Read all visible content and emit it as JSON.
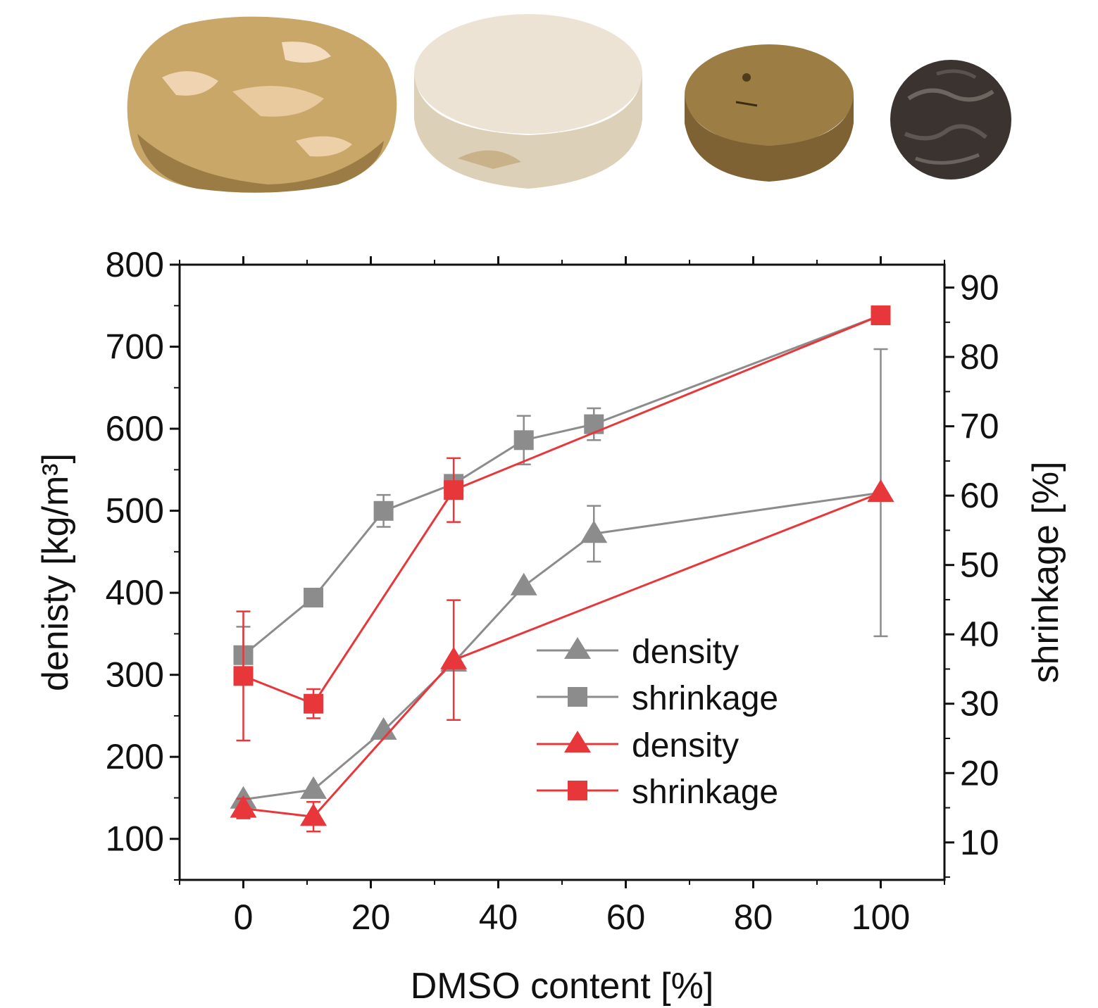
{
  "chart_data": {
    "type": "line",
    "title": "",
    "xlabel": "DMSO content [%]",
    "ylabel_left": "denisty [kg/m³]",
    "ylabel_right": "shrinkage [%]",
    "xlim": [
      -10,
      110
    ],
    "ylim_left": [
      50,
      800
    ],
    "ylim_right": [
      4.6,
      93.3
    ],
    "x_ticks": [
      0,
      20,
      40,
      60,
      80,
      100
    ],
    "y_left_ticks": [
      100,
      200,
      300,
      400,
      500,
      600,
      700,
      800
    ],
    "y_right_ticks": [
      10,
      20,
      30,
      40,
      50,
      60,
      70,
      80,
      90
    ],
    "grid": false,
    "legend_position": "center-right",
    "series": [
      {
        "name": "density",
        "axis": "left",
        "marker": "triangle",
        "color": "#8c8c8c",
        "x": [
          0,
          11,
          22,
          33,
          44,
          55,
          100
        ],
        "y": [
          148,
          160,
          232,
          315,
          408,
          472,
          522
        ],
        "err": [
          0,
          0,
          0,
          0,
          0,
          34,
          175
        ]
      },
      {
        "name": "shrinkage",
        "axis": "right",
        "marker": "square",
        "color": "#8c8c8c",
        "x": [
          0,
          11,
          22,
          33,
          44,
          55,
          100
        ],
        "y": [
          37,
          45.3,
          57.8,
          61.7,
          68,
          70.3,
          86
        ],
        "err": [
          4.1,
          0,
          2.3,
          0,
          3.5,
          2.3,
          0
        ]
      },
      {
        "name": "density",
        "axis": "left",
        "marker": "triangle",
        "color": "#e8373a",
        "x": [
          0,
          11,
          33,
          100
        ],
        "y": [
          137,
          127,
          318,
          522
        ],
        "err": [
          12,
          18,
          73,
          0
        ]
      },
      {
        "name": "shrinkage",
        "axis": "right",
        "marker": "square",
        "color": "#e8373a",
        "x": [
          0,
          11,
          33,
          100
        ],
        "y": [
          34,
          30,
          60.8,
          86
        ],
        "err": [
          9.3,
          2.1,
          4.6,
          0
        ]
      }
    ]
  },
  "photos": [
    {
      "name": "sample-1-photo",
      "color": "#c9a769"
    },
    {
      "name": "sample-2-photo",
      "color": "#e8dcc7"
    },
    {
      "name": "sample-3-photo",
      "color": "#9c7e45"
    },
    {
      "name": "sample-4-photo",
      "color": "#3b3330"
    }
  ]
}
